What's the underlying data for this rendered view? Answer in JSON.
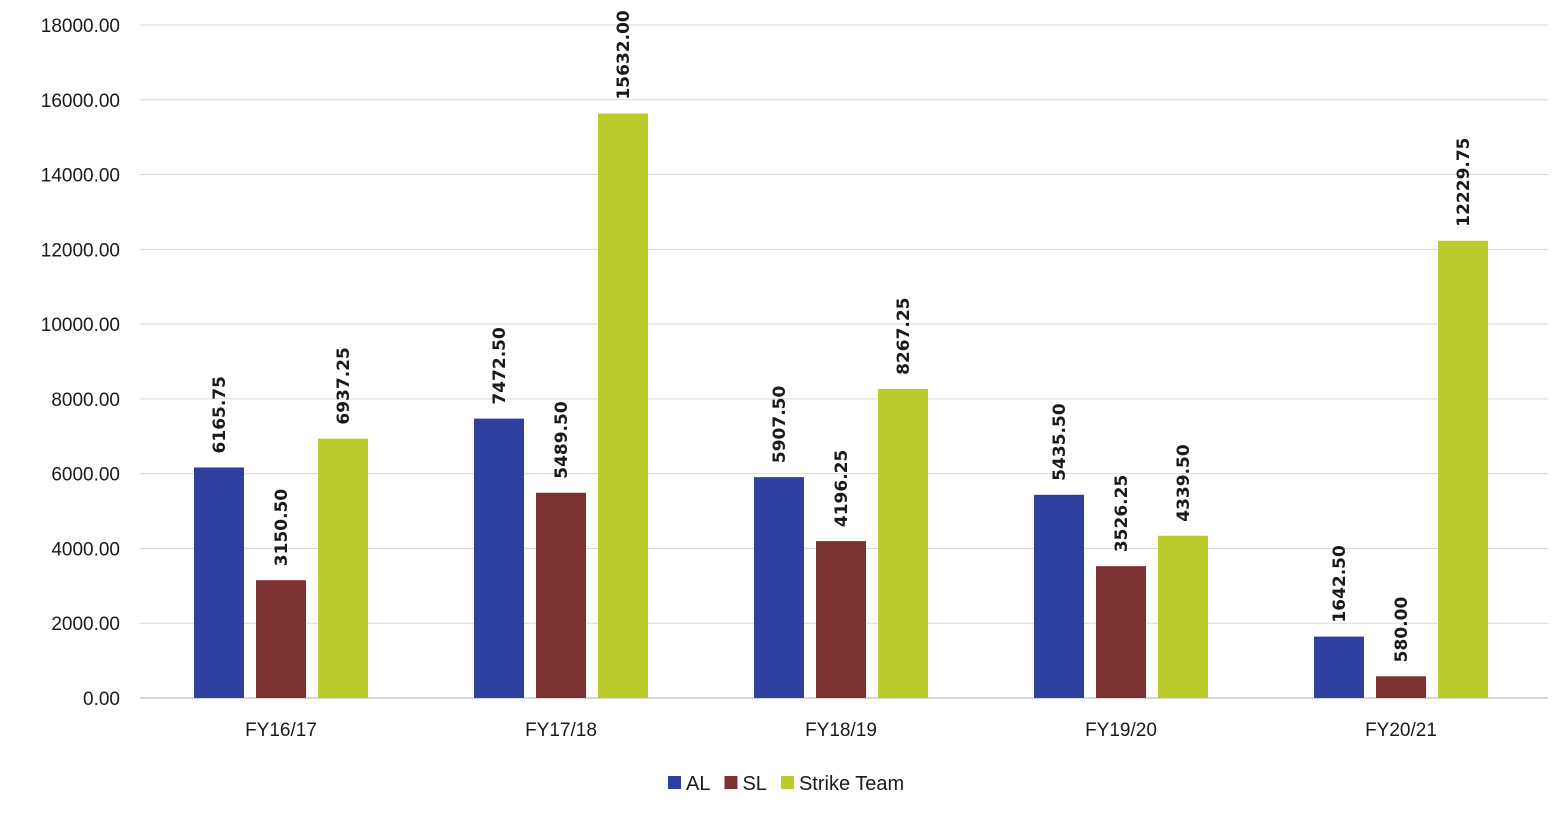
{
  "chart_data": {
    "type": "bar",
    "title": "",
    "xlabel": "",
    "ylabel": "",
    "categories": [
      "FY16/17",
      "FY17/18",
      "FY18/19",
      "FY19/20",
      "FY20/21"
    ],
    "series": [
      {
        "name": "AL",
        "color": "#2f3f9e",
        "values": [
          6165.75,
          7472.5,
          5907.5,
          5435.5,
          1642.5
        ],
        "labels": [
          "6165.75",
          "7472.50",
          "5907.50",
          "5435.50",
          "1642.50"
        ]
      },
      {
        "name": "SL",
        "color": "#7c3133",
        "values": [
          3150.5,
          5489.5,
          4196.25,
          3526.25,
          580.0
        ],
        "labels": [
          "3150.50",
          "5489.50",
          "4196.25",
          "3526.25",
          "580.00"
        ]
      },
      {
        "name": "Strike Team",
        "color": "#bccb2c",
        "values": [
          6937.25,
          15632.0,
          8267.25,
          4339.5,
          12229.75
        ],
        "labels": [
          "6937.25",
          "15632.00",
          "8267.25",
          "4339.50",
          "12229.75"
        ]
      }
    ],
    "ylim": [
      0,
      18000
    ],
    "yticks": [
      0,
      2000,
      4000,
      6000,
      8000,
      10000,
      12000,
      14000,
      16000,
      18000
    ],
    "ytick_labels": [
      "0.00",
      "2000.00",
      "4000.00",
      "6000.00",
      "8000.00",
      "10000.00",
      "12000.00",
      "14000.00",
      "16000.00",
      "18000.00"
    ],
    "grid": true,
    "legend": {
      "position": "bottom-center"
    },
    "data_labels": "rotated-vertical"
  }
}
